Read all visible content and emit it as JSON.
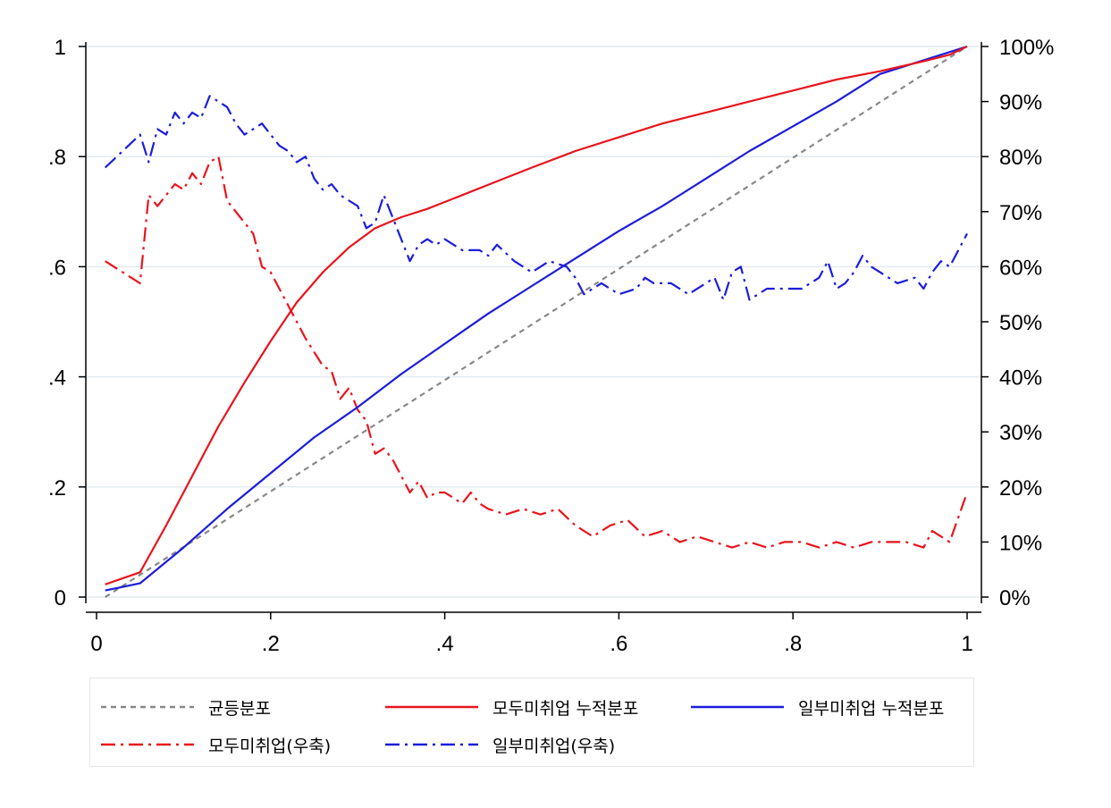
{
  "chart_data": {
    "type": "line",
    "title": "",
    "xlabel": "",
    "ylabel": "",
    "y2label": "",
    "xlim": [
      0,
      1
    ],
    "ylim": [
      0,
      1
    ],
    "y2lim": [
      0,
      100
    ],
    "grid": "horizontal",
    "legend_position": "bottom",
    "x_ticks": [
      {
        "value": 0,
        "label": "0"
      },
      {
        "value": 0.2,
        "label": ".2"
      },
      {
        "value": 0.4,
        "label": ".4"
      },
      {
        "value": 0.6,
        "label": ".6"
      },
      {
        "value": 0.8,
        "label": ".8"
      },
      {
        "value": 1,
        "label": "1"
      }
    ],
    "y_ticks": [
      {
        "value": 0,
        "label": "0"
      },
      {
        "value": 0.2,
        "label": ".2"
      },
      {
        "value": 0.4,
        "label": ".4"
      },
      {
        "value": 0.6,
        "label": ".6"
      },
      {
        "value": 0.8,
        "label": ".8"
      },
      {
        "value": 1,
        "label": "1"
      }
    ],
    "y2_ticks": [
      {
        "value": 0,
        "label": "0%"
      },
      {
        "value": 10,
        "label": "10%"
      },
      {
        "value": 20,
        "label": "20%"
      },
      {
        "value": 30,
        "label": "30%"
      },
      {
        "value": 40,
        "label": "40%"
      },
      {
        "value": 50,
        "label": "50%"
      },
      {
        "value": 60,
        "label": "60%"
      },
      {
        "value": 70,
        "label": "70%"
      },
      {
        "value": 80,
        "label": "80%"
      },
      {
        "value": 90,
        "label": "90%"
      },
      {
        "value": 100,
        "label": "100%"
      }
    ],
    "series": [
      {
        "name": "균등분포",
        "axis": "left",
        "color": "#888888",
        "style": "dashed",
        "x": [
          0.01,
          1.0
        ],
        "y": [
          0.0,
          1.0
        ]
      },
      {
        "name": "모두미취업 누적분포",
        "axis": "left",
        "color": "#e8141c",
        "style": "solid",
        "x": [
          0.01,
          0.05,
          0.08,
          0.11,
          0.14,
          0.17,
          0.2,
          0.23,
          0.26,
          0.29,
          0.32,
          0.35,
          0.38,
          0.42,
          0.46,
          0.5,
          0.55,
          0.6,
          0.65,
          0.7,
          0.75,
          0.8,
          0.85,
          0.9,
          0.95,
          0.98,
          1.0
        ],
        "y": [
          0.023,
          0.045,
          0.13,
          0.22,
          0.31,
          0.39,
          0.465,
          0.535,
          0.59,
          0.635,
          0.67,
          0.69,
          0.705,
          0.73,
          0.755,
          0.78,
          0.81,
          0.835,
          0.86,
          0.88,
          0.9,
          0.92,
          0.94,
          0.955,
          0.973,
          0.985,
          1.0
        ]
      },
      {
        "name": "일부미취업 누적분포",
        "axis": "left",
        "color": "#1c1cdc",
        "style": "solid",
        "x": [
          0.01,
          0.05,
          0.1,
          0.15,
          0.2,
          0.25,
          0.3,
          0.35,
          0.4,
          0.45,
          0.5,
          0.55,
          0.6,
          0.65,
          0.7,
          0.75,
          0.8,
          0.85,
          0.9,
          0.95,
          1.0
        ],
        "y": [
          0.012,
          0.025,
          0.09,
          0.16,
          0.225,
          0.29,
          0.345,
          0.405,
          0.46,
          0.515,
          0.565,
          0.615,
          0.665,
          0.71,
          0.76,
          0.81,
          0.855,
          0.9,
          0.95,
          0.975,
          1.0
        ]
      },
      {
        "name": "모두미취업(우축)",
        "axis": "right",
        "color": "#e8141c",
        "style": "dashdot",
        "x": [
          0.01,
          0.05,
          0.06,
          0.07,
          0.09,
          0.1,
          0.11,
          0.12,
          0.13,
          0.14,
          0.15,
          0.16,
          0.17,
          0.18,
          0.19,
          0.2,
          0.22,
          0.24,
          0.26,
          0.27,
          0.28,
          0.29,
          0.3,
          0.31,
          0.32,
          0.33,
          0.34,
          0.35,
          0.36,
          0.37,
          0.38,
          0.39,
          0.4,
          0.41,
          0.42,
          0.43,
          0.44,
          0.45,
          0.47,
          0.49,
          0.51,
          0.53,
          0.55,
          0.57,
          0.59,
          0.61,
          0.63,
          0.65,
          0.67,
          0.69,
          0.71,
          0.73,
          0.75,
          0.77,
          0.79,
          0.81,
          0.83,
          0.85,
          0.87,
          0.89,
          0.91,
          0.93,
          0.95,
          0.96,
          0.97,
          0.98,
          1.0
        ],
        "y": [
          61,
          57,
          73,
          71,
          75,
          74,
          77,
          75,
          79,
          80,
          72,
          70,
          68,
          66,
          60,
          59,
          53,
          47,
          42,
          41,
          36,
          38,
          34,
          32,
          26,
          27,
          25,
          22,
          19,
          21,
          18,
          19,
          19,
          18,
          17,
          19,
          17,
          16,
          15,
          16,
          15,
          16,
          13,
          11,
          13,
          14,
          11,
          12,
          10,
          11,
          10,
          9,
          10,
          9,
          10,
          10,
          9,
          10,
          9,
          10,
          10,
          10,
          9,
          12,
          11,
          10,
          19
        ]
      },
      {
        "name": "일부미취업(우축)",
        "axis": "right",
        "color": "#1c1cdc",
        "style": "dashdot",
        "x": [
          0.01,
          0.03,
          0.05,
          0.06,
          0.07,
          0.08,
          0.09,
          0.1,
          0.11,
          0.12,
          0.13,
          0.14,
          0.15,
          0.16,
          0.17,
          0.18,
          0.19,
          0.2,
          0.21,
          0.22,
          0.23,
          0.24,
          0.25,
          0.26,
          0.27,
          0.28,
          0.29,
          0.3,
          0.31,
          0.32,
          0.33,
          0.34,
          0.35,
          0.36,
          0.37,
          0.38,
          0.39,
          0.4,
          0.42,
          0.44,
          0.45,
          0.46,
          0.48,
          0.5,
          0.52,
          0.54,
          0.55,
          0.56,
          0.58,
          0.6,
          0.62,
          0.63,
          0.64,
          0.66,
          0.68,
          0.7,
          0.71,
          0.72,
          0.73,
          0.74,
          0.75,
          0.77,
          0.79,
          0.81,
          0.83,
          0.84,
          0.85,
          0.86,
          0.87,
          0.88,
          0.89,
          0.9,
          0.92,
          0.94,
          0.95,
          0.96,
          0.97,
          0.98,
          0.99,
          1.0
        ],
        "y": [
          78,
          81,
          84,
          79,
          85,
          84,
          88,
          86,
          88,
          87,
          91,
          90,
          89,
          86,
          84,
          85,
          86,
          84,
          82,
          81,
          79,
          80,
          76,
          74,
          75,
          73,
          72,
          71,
          67,
          68,
          73,
          69,
          65,
          61,
          64,
          65,
          64,
          65,
          63,
          63,
          62,
          64,
          61,
          59,
          61,
          60,
          58,
          55,
          57,
          55,
          56,
          58,
          57,
          57,
          55,
          57,
          58,
          54,
          59,
          60,
          54,
          56,
          56,
          56,
          58,
          61,
          56,
          57,
          59,
          62,
          60,
          59,
          57,
          58,
          56,
          59,
          61,
          60,
          63,
          66
        ]
      }
    ]
  },
  "legend": {
    "rows": [
      [
        "균등분포",
        "모두미취업 누적분포",
        "일부미취업 누적분포"
      ],
      [
        "모두미취업(우축)",
        "일부미취업(우축)"
      ]
    ]
  }
}
